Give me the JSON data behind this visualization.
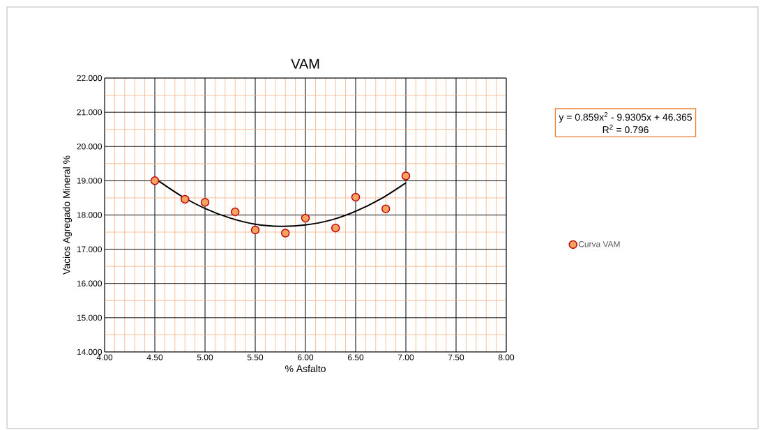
{
  "chart_data": {
    "type": "scatter",
    "title": "VAM",
    "xlabel": "% Asfalto",
    "ylabel": "Vacios  Agregado Mineral %",
    "series": [
      {
        "name": "Curva VAM",
        "color": "#f4a460",
        "marker": "circle",
        "x": [
          4.5,
          4.8,
          5.0,
          5.3,
          5.5,
          5.8,
          6.0,
          6.3,
          6.5,
          6.8,
          7.0
        ],
        "values": [
          19.0,
          18.46,
          18.37,
          18.09,
          17.56,
          17.47,
          17.91,
          17.62,
          18.52,
          18.18,
          19.14
        ]
      },
      {
        "type": "line",
        "color": "#000000",
        "line_style": "solid",
        "marker": "none",
        "x": [
          4.5,
          4.75,
          5.0,
          5.25,
          5.5,
          5.75,
          6.0,
          6.25,
          6.5,
          6.75,
          7.0
        ],
        "values": [
          19.07,
          18.58,
          18.19,
          17.91,
          17.73,
          17.67,
          17.71,
          17.85,
          18.11,
          18.47,
          18.94
        ]
      }
    ],
    "xlim": [
      4,
      8
    ],
    "ylim": [
      14,
      22
    ],
    "xticks": [
      {
        "value": 4,
        "label": "4.00"
      },
      {
        "value": 4.1,
        "label": null
      },
      {
        "value": 4.2,
        "label": null
      },
      {
        "value": 4.3,
        "label": null
      },
      {
        "value": 4.4,
        "label": null
      },
      {
        "value": 4.5,
        "label": "4.50"
      },
      {
        "value": 4.6,
        "label": null
      },
      {
        "value": 4.7,
        "label": null
      },
      {
        "value": 4.8,
        "label": null
      },
      {
        "value": 4.9,
        "label": null
      },
      {
        "value": 5,
        "label": "5.00"
      },
      {
        "value": 5.1,
        "label": null
      },
      {
        "value": 5.2,
        "label": null
      },
      {
        "value": 5.3,
        "label": null
      },
      {
        "value": 5.4,
        "label": null
      },
      {
        "value": 5.5,
        "label": "5.50"
      },
      {
        "value": 5.6,
        "label": null
      },
      {
        "value": 5.7,
        "label": null
      },
      {
        "value": 5.8,
        "label": null
      },
      {
        "value": 5.9,
        "label": null
      },
      {
        "value": 6,
        "label": "6.00"
      },
      {
        "value": 6.1,
        "label": null
      },
      {
        "value": 6.2,
        "label": null
      },
      {
        "value": 6.3,
        "label": null
      },
      {
        "value": 6.4,
        "label": null
      },
      {
        "value": 6.5,
        "label": "6.50"
      },
      {
        "value": 6.6,
        "label": null
      },
      {
        "value": 6.7,
        "label": null
      },
      {
        "value": 6.8,
        "label": null
      },
      {
        "value": 6.9,
        "label": null
      },
      {
        "value": 7,
        "label": "7.00"
      },
      {
        "value": 7.1,
        "label": null
      },
      {
        "value": 7.2,
        "label": null
      },
      {
        "value": 7.3,
        "label": null
      },
      {
        "value": 7.4,
        "label": null
      },
      {
        "value": 7.5,
        "label": "7.50"
      },
      {
        "value": 7.6,
        "label": null
      },
      {
        "value": 7.7,
        "label": null
      },
      {
        "value": 7.8,
        "label": null
      },
      {
        "value": 7.9,
        "label": null
      },
      {
        "value": 8,
        "label": "8.00"
      }
    ],
    "yticks": [
      {
        "value": 14,
        "label": "14.000"
      },
      {
        "value": 14.5,
        "label": null
      },
      {
        "value": 15,
        "label": "15.000"
      },
      {
        "value": 15.5,
        "label": null
      },
      {
        "value": 16,
        "label": "16.000"
      },
      {
        "value": 16.5,
        "label": null
      },
      {
        "value": 17,
        "label": "17.000"
      },
      {
        "value": 17.5,
        "label": null
      },
      {
        "value": 18,
        "label": "18.000"
      },
      {
        "value": 18.5,
        "label": null
      },
      {
        "value": 19,
        "label": "19.000"
      },
      {
        "value": 19.5,
        "label": null
      },
      {
        "value": 20,
        "label": "20.000"
      },
      {
        "value": 20.5,
        "label": null
      },
      {
        "value": 21,
        "label": "21.000"
      },
      {
        "value": 21.5,
        "label": null
      },
      {
        "value": 22,
        "label": "22.000"
      }
    ],
    "grid": true,
    "legend": "right",
    "annotations": [
      "y = 0.859x$^{2}$ - 9.9305x + 46.365",
      "R$^{2}$ = 0.796"
    ]
  }
}
